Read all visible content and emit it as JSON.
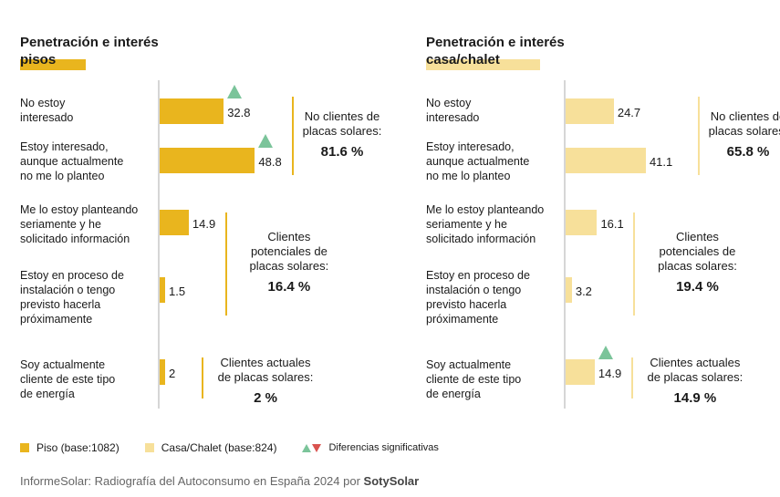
{
  "colors": {
    "piso": "#e9b51e",
    "casa": "#f7e09a",
    "increase": "#7bc49a",
    "decrease": "#d9534f"
  },
  "chart_data": [
    {
      "type": "bar",
      "orientation": "horizontal",
      "title_line1": "Penetración e interés",
      "title_line2": "pisos",
      "series_name": "Piso (base:1082)",
      "categories": [
        [
          "No estoy",
          "interesado"
        ],
        [
          "Estoy interesado,",
          "aunque actualmente",
          "no me lo planteo"
        ],
        [
          "Me lo estoy planteando",
          "seriamente y he",
          "solicitado información"
        ],
        [
          "Estoy en proceso de",
          "instalación o tengo",
          "previsto hacerla",
          "próximamente"
        ],
        [
          "Soy actualmente",
          "cliente de este tipo",
          "de energía"
        ]
      ],
      "values": [
        32.8,
        48.8,
        14.9,
        1.5,
        2
      ],
      "value_labels": [
        "32.8",
        "48.8",
        "14.9",
        "1.5",
        "2"
      ],
      "significant_increase": [
        true,
        true,
        false,
        false,
        false
      ],
      "groups": [
        {
          "label_lines": [
            "No clientes de",
            "placas solares:"
          ],
          "percent": "81.6 %"
        },
        {
          "label_lines": [
            "Clientes",
            "potenciales de",
            "placas solares:"
          ],
          "percent": "16.4 %"
        },
        {
          "label_lines": [
            "Clientes actuales",
            "de placas solares:"
          ],
          "percent": "2 %"
        }
      ]
    },
    {
      "type": "bar",
      "orientation": "horizontal",
      "title_line1": "Penetración e interés",
      "title_line2": "casa/chalet",
      "series_name": "Casa/Chalet (base:824)",
      "categories": [
        [
          "No estoy",
          "interesado"
        ],
        [
          "Estoy interesado,",
          "aunque actualmente",
          "no me lo planteo"
        ],
        [
          "Me lo estoy planteando",
          "seriamente y he",
          "solicitado información"
        ],
        [
          "Estoy en proceso de",
          "instalación o tengo",
          "previsto hacerla",
          "próximamente"
        ],
        [
          "Soy actualmente",
          "cliente de este tipo",
          "de energía"
        ]
      ],
      "values": [
        24.7,
        41.1,
        16.1,
        3.2,
        14.9
      ],
      "value_labels": [
        "24.7",
        "41.1",
        "16.1",
        "3.2",
        "14.9"
      ],
      "significant_increase": [
        false,
        false,
        false,
        false,
        true
      ],
      "groups": [
        {
          "label_lines": [
            "No clientes de",
            "placas solares:"
          ],
          "percent": "65.8 %"
        },
        {
          "label_lines": [
            "Clientes",
            "potenciales de",
            "placas solares:"
          ],
          "percent": "19.4 %"
        },
        {
          "label_lines": [
            "Clientes actuales",
            "de placas solares:"
          ],
          "percent": "14.9 %"
        }
      ]
    }
  ],
  "legend": {
    "piso": "Piso (base:1082)",
    "casa": "Casa/Chalet (base:824)",
    "significant": "Diferencias significativas"
  },
  "footer": {
    "text": "InformeSolar: Radiografía del Autoconsumo en España 2024 por ",
    "brand": "SotySolar"
  }
}
